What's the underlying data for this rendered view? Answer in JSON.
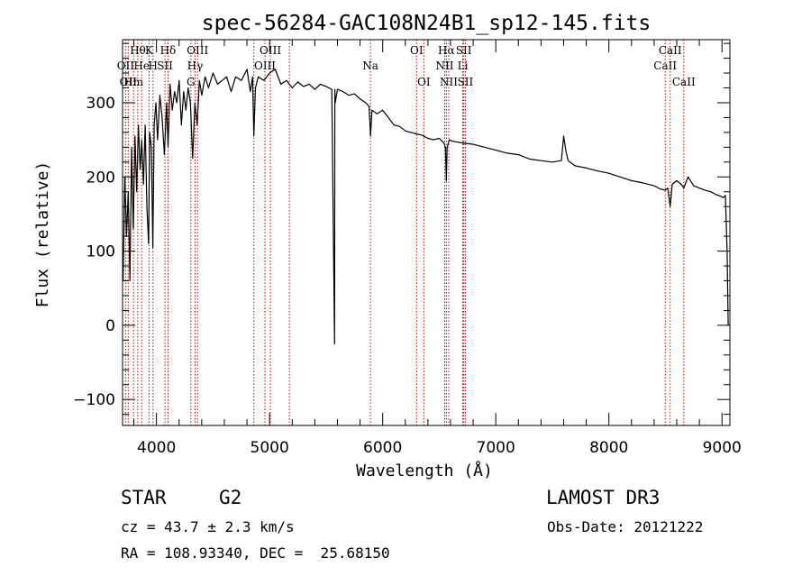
{
  "chart_data": {
    "type": "line",
    "title": "spec-56284-GAC108N24B1_sp12-145.fits",
    "xlabel": "Wavelength (Å)",
    "ylabel": "Flux (relative)",
    "xlim": [
      3700,
      9070
    ],
    "ylim": [
      -135,
      385
    ],
    "x_ticks": [
      4000,
      5000,
      6000,
      7000,
      8000,
      9000
    ],
    "y_ticks": [
      -100,
      0,
      100,
      200,
      300
    ],
    "line_color": "#000000",
    "marker_color": "#cc0000",
    "series": [
      {
        "name": "spectrum",
        "x": [
          3705,
          3720,
          3735,
          3750,
          3765,
          3780,
          3795,
          3810,
          3825,
          3840,
          3855,
          3870,
          3885,
          3900,
          3915,
          3930,
          3940,
          3955,
          3968,
          3980,
          3995,
          4010,
          4030,
          4050,
          4070,
          4090,
          4102,
          4120,
          4140,
          4160,
          4180,
          4200,
          4220,
          4240,
          4260,
          4280,
          4300,
          4320,
          4340,
          4360,
          4380,
          4400,
          4430,
          4460,
          4500,
          4540,
          4580,
          4620,
          4660,
          4700,
          4750,
          4800,
          4830,
          4850,
          4861,
          4875,
          4900,
          4950,
          5000,
          5050,
          5100,
          5150,
          5200,
          5250,
          5300,
          5350,
          5400,
          5450,
          5500,
          5550,
          5575,
          5577,
          5580,
          5600,
          5650,
          5700,
          5750,
          5800,
          5850,
          5880,
          5893,
          5905,
          5950,
          6000,
          6050,
          6100,
          6150,
          6200,
          6250,
          6300,
          6350,
          6400,
          6450,
          6500,
          6540,
          6555,
          6563,
          6570,
          6590,
          6620,
          6700,
          6800,
          6900,
          7000,
          7100,
          7200,
          7300,
          7400,
          7500,
          7580,
          7600,
          7620,
          7640,
          7700,
          7800,
          7900,
          8000,
          8100,
          8200,
          8300,
          8400,
          8450,
          8498,
          8520,
          8542,
          8560,
          8600,
          8640,
          8662,
          8700,
          8750,
          8800,
          8850,
          8900,
          8950,
          8990,
          9010,
          9030,
          9045,
          9055
        ],
        "y": [
          60,
          200,
          120,
          180,
          60,
          240,
          130,
          255,
          180,
          270,
          210,
          250,
          190,
          270,
          160,
          110,
          260,
          240,
          105,
          270,
          300,
          250,
          310,
          280,
          230,
          300,
          240,
          325,
          290,
          315,
          300,
          330,
          270,
          315,
          290,
          320,
          300,
          225,
          300,
          270,
          330,
          310,
          335,
          320,
          340,
          325,
          330,
          335,
          315,
          335,
          330,
          345,
          315,
          335,
          255,
          320,
          335,
          330,
          340,
          345,
          325,
          330,
          320,
          328,
          322,
          325,
          318,
          325,
          322,
          318,
          -25,
          318,
          300,
          318,
          315,
          310,
          312,
          305,
          300,
          295,
          255,
          290,
          285,
          290,
          280,
          270,
          268,
          262,
          260,
          258,
          256,
          252,
          250,
          252,
          246,
          240,
          195,
          240,
          250,
          248,
          246,
          244,
          240,
          236,
          232,
          230,
          224,
          222,
          220,
          222,
          255,
          235,
          222,
          215,
          212,
          208,
          205,
          200,
          195,
          192,
          188,
          184,
          182,
          185,
          160,
          190,
          195,
          190,
          185,
          200,
          188,
          185,
          182,
          180,
          176,
          174,
          172,
          175,
          100,
          0
        ]
      }
    ],
    "lines": [
      {
        "wl": 3727,
        "labels": [
          {
            "t": "OII",
            "row": 2
          }
        ]
      },
      {
        "wl": 3750,
        "labels": [
          {
            "t": "OII",
            "row": 3
          }
        ]
      },
      {
        "wl": 3797,
        "labels": [
          {
            "t": "Hm",
            "row": 3
          }
        ]
      },
      {
        "wl": 3835,
        "labels": [
          {
            "t": "Hθ",
            "row": 1
          }
        ]
      },
      {
        "wl": 3869,
        "labels": [
          {
            "t": "He",
            "row": 2
          }
        ]
      },
      {
        "wl": 3934,
        "labels": [
          {
            "t": "K",
            "row": 1
          }
        ]
      },
      {
        "wl": 3969,
        "labels": [
          {
            "t": "H",
            "row": 2
          }
        ]
      },
      {
        "wl": 4102,
        "labels": [
          {
            "t": "Hδ",
            "row": 1
          }
        ]
      },
      {
        "wl": 4075,
        "labels": [
          {
            "t": "SII",
            "row": 2
          }
        ]
      },
      {
        "wl": 4304,
        "labels": [
          {
            "t": "G",
            "row": 3
          }
        ]
      },
      {
        "wl": 4341,
        "labels": [
          {
            "t": "Hγ",
            "row": 2
          }
        ]
      },
      {
        "wl": 4363,
        "labels": [
          {
            "t": "OIII",
            "row": 1
          }
        ]
      },
      {
        "wl": 4861,
        "labels": []
      },
      {
        "wl": 4959,
        "labels": [
          {
            "t": "OIII",
            "row": 2
          }
        ]
      },
      {
        "wl": 5007,
        "labels": [
          {
            "t": "OIII",
            "row": 1
          }
        ]
      },
      {
        "wl": 5175,
        "labels": []
      },
      {
        "wl": 5892,
        "labels": [
          {
            "t": "Na",
            "row": 2
          }
        ]
      },
      {
        "wl": 6300,
        "labels": [
          {
            "t": "OI",
            "row": 1
          }
        ]
      },
      {
        "wl": 6364,
        "labels": [
          {
            "t": "OI",
            "row": 3
          }
        ]
      },
      {
        "wl": 6548,
        "labels": [
          {
            "t": "NII",
            "row": 2
          }
        ]
      },
      {
        "wl": 6563,
        "labels": [
          {
            "t": "Hα",
            "row": 1
          }
        ]
      },
      {
        "wl": 6584,
        "labels": [
          {
            "t": "NII",
            "row": 3
          }
        ]
      },
      {
        "wl": 6708,
        "labels": [
          {
            "t": "Li",
            "row": 2
          }
        ]
      },
      {
        "wl": 6717,
        "labels": [
          {
            "t": "SII",
            "row": 1
          }
        ]
      },
      {
        "wl": 6731,
        "labels": [
          {
            "t": "SII",
            "row": 3
          }
        ]
      },
      {
        "wl": 8498,
        "labels": [
          {
            "t": "CaII",
            "row": 2
          }
        ]
      },
      {
        "wl": 8542,
        "labels": [
          {
            "t": "CaII",
            "row": 1
          }
        ]
      },
      {
        "wl": 8662,
        "labels": [
          {
            "t": "CaII",
            "row": 3
          }
        ]
      }
    ]
  },
  "info": {
    "object_class": "STAR",
    "subclass": "G2",
    "survey": "LAMOST DR3",
    "redshift": "cz = 43.7 ± 2.3 km/s",
    "obs_date": "Obs-Date: 20121222",
    "coords": "RA = 108.93340, DEC =  25.68150"
  }
}
